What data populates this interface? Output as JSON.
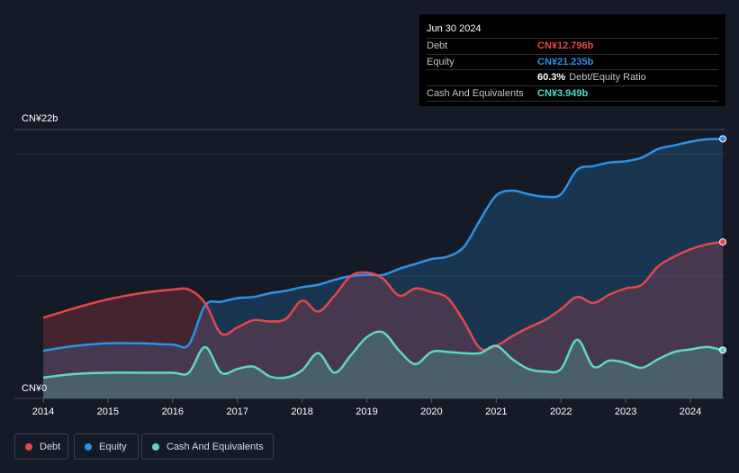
{
  "tooltip": {
    "date": "Jun 30 2024",
    "debt_label": "Debt",
    "debt_value": "CN¥12.796b",
    "equity_label": "Equity",
    "equity_value": "CN¥21.235b",
    "ratio_value": "60.3%",
    "ratio_label": "Debt/Equity Ratio",
    "cash_label": "Cash And Equivalents",
    "cash_value": "CN¥3.949b"
  },
  "legend": {
    "debt": "Debt",
    "equity": "Equity",
    "cash": "Cash And Equivalents"
  },
  "colors": {
    "debt": "#e5474d",
    "equity": "#2d92e6",
    "cash": "#5dd8c6",
    "background": "#151b26"
  },
  "chart_data": {
    "type": "area",
    "y_max_label": "CN¥22b",
    "y_min_label": "CN¥0",
    "ylim": [
      0,
      22
    ],
    "xlim": [
      2014,
      2024.5
    ],
    "x_ticks": [
      "2014",
      "2015",
      "2016",
      "2017",
      "2018",
      "2019",
      "2020",
      "2021",
      "2022",
      "2023",
      "2024"
    ],
    "series": [
      {
        "name": "Debt",
        "x": [
          2014.0,
          2014.5,
          2015.0,
          2015.5,
          2016.0,
          2016.25,
          2016.5,
          2016.75,
          2017.0,
          2017.25,
          2017.5,
          2017.75,
          2018.0,
          2018.25,
          2018.5,
          2018.75,
          2019.0,
          2019.25,
          2019.5,
          2019.75,
          2020.0,
          2020.25,
          2020.5,
          2020.75,
          2021.0,
          2021.25,
          2021.5,
          2021.75,
          2022.0,
          2022.25,
          2022.5,
          2022.75,
          2023.0,
          2023.25,
          2023.5,
          2023.75,
          2024.0,
          2024.25,
          2024.5
        ],
        "values": [
          6.6,
          7.4,
          8.1,
          8.6,
          8.9,
          8.9,
          7.8,
          5.3,
          5.8,
          6.4,
          6.3,
          6.5,
          8.0,
          7.1,
          8.4,
          10.0,
          10.3,
          9.8,
          8.4,
          9.0,
          8.7,
          8.2,
          6.3,
          4.1,
          4.3,
          5.1,
          5.8,
          6.4,
          7.3,
          8.3,
          7.8,
          8.5,
          9.0,
          9.3,
          10.8,
          11.6,
          12.2,
          12.6,
          12.796
        ]
      },
      {
        "name": "Equity",
        "x": [
          2014.0,
          2014.5,
          2015.0,
          2015.5,
          2016.0,
          2016.25,
          2016.5,
          2016.75,
          2017.0,
          2017.25,
          2017.5,
          2017.75,
          2018.0,
          2018.25,
          2018.5,
          2018.75,
          2019.0,
          2019.25,
          2019.5,
          2019.75,
          2020.0,
          2020.25,
          2020.5,
          2020.75,
          2021.0,
          2021.25,
          2021.5,
          2021.75,
          2022.0,
          2022.25,
          2022.5,
          2022.75,
          2023.0,
          2023.25,
          2023.5,
          2023.75,
          2024.0,
          2024.25,
          2024.5
        ],
        "values": [
          3.9,
          4.3,
          4.5,
          4.5,
          4.4,
          4.4,
          7.6,
          7.9,
          8.2,
          8.3,
          8.6,
          8.8,
          9.1,
          9.3,
          9.7,
          10.0,
          10.1,
          10.1,
          10.6,
          11.0,
          11.4,
          11.6,
          12.4,
          14.6,
          16.6,
          17.0,
          16.7,
          16.5,
          16.7,
          18.7,
          19.0,
          19.3,
          19.4,
          19.7,
          20.4,
          20.7,
          21.0,
          21.2,
          21.235
        ]
      },
      {
        "name": "Cash And Equivalents",
        "x": [
          2014.0,
          2014.5,
          2015.0,
          2015.5,
          2016.0,
          2016.25,
          2016.5,
          2016.75,
          2017.0,
          2017.25,
          2017.5,
          2017.75,
          2018.0,
          2018.25,
          2018.5,
          2018.75,
          2019.0,
          2019.25,
          2019.5,
          2019.75,
          2020.0,
          2020.25,
          2020.5,
          2020.75,
          2021.0,
          2021.25,
          2021.5,
          2021.75,
          2022.0,
          2022.25,
          2022.5,
          2022.75,
          2023.0,
          2023.25,
          2023.5,
          2023.75,
          2024.0,
          2024.25,
          2024.5
        ],
        "values": [
          1.7,
          2.0,
          2.1,
          2.1,
          2.1,
          2.1,
          4.2,
          2.1,
          2.4,
          2.6,
          1.8,
          1.7,
          2.3,
          3.7,
          2.1,
          3.5,
          5.0,
          5.4,
          3.9,
          2.8,
          3.8,
          3.8,
          3.7,
          3.7,
          4.3,
          3.2,
          2.4,
          2.2,
          2.4,
          4.8,
          2.6,
          3.1,
          2.9,
          2.5,
          3.2,
          3.8,
          4.0,
          4.2,
          3.949
        ]
      }
    ],
    "grid": true
  }
}
